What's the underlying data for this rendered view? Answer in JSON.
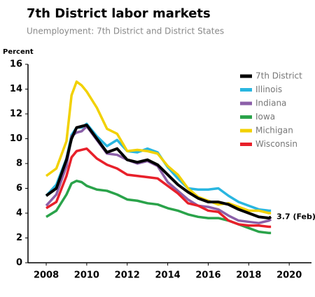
{
  "chart_data": {
    "type": "line",
    "title": "7th District labor markets",
    "subtitle": "Unemployment: 7th District and District States",
    "y_label": "Percent",
    "annotation": "3.7 (Feb)",
    "x": [
      2008,
      2008.5,
      2009,
      2009.25,
      2009.5,
      2009.75,
      2010,
      2010.5,
      2011,
      2011.5,
      2012,
      2012.5,
      2013,
      2013.5,
      2014,
      2014.5,
      2015,
      2015.5,
      2016,
      2016.5,
      2017,
      2017.5,
      2018,
      2018.5,
      2019,
      2019.1
    ],
    "series": [
      {
        "name": "Illinois",
        "color": "#29b6e0",
        "values": [
          5.4,
          6.3,
          8.4,
          10.3,
          10.9,
          10.9,
          11.2,
          10.2,
          9.4,
          9.9,
          9.0,
          8.9,
          9.2,
          8.9,
          7.7,
          6.8,
          6.0,
          5.9,
          5.9,
          6.0,
          5.4,
          4.9,
          4.6,
          4.3,
          4.2,
          4.2
        ]
      },
      {
        "name": "Indiana",
        "color": "#8b5fa8",
        "values": [
          4.6,
          5.5,
          7.8,
          10.2,
          10.5,
          10.6,
          11.0,
          9.9,
          8.8,
          8.7,
          8.3,
          8.0,
          8.2,
          7.8,
          6.5,
          5.8,
          5.1,
          4.6,
          4.5,
          4.3,
          3.8,
          3.4,
          3.3,
          3.2,
          3.4,
          3.5
        ]
      },
      {
        "name": "Iowa",
        "color": "#2aa34a",
        "values": [
          3.7,
          4.2,
          5.5,
          6.4,
          6.6,
          6.5,
          6.2,
          5.9,
          5.8,
          5.5,
          5.1,
          5.0,
          4.8,
          4.7,
          4.4,
          4.2,
          3.9,
          3.7,
          3.6,
          3.6,
          3.4,
          3.1,
          2.8,
          2.5,
          2.4,
          2.4
        ]
      },
      {
        "name": "Michigan",
        "color": "#f2d100",
        "values": [
          7.0,
          7.6,
          9.8,
          13.5,
          14.6,
          14.3,
          13.8,
          12.5,
          10.8,
          10.4,
          9.0,
          9.1,
          9.0,
          8.8,
          7.8,
          7.1,
          6.0,
          5.3,
          5.0,
          4.7,
          4.8,
          4.5,
          4.2,
          4.2,
          4.0,
          4.0
        ]
      },
      {
        "name": "Wisconsin",
        "color": "#e8202a",
        "values": [
          4.4,
          4.9,
          7.0,
          8.5,
          9.0,
          9.1,
          9.2,
          8.4,
          7.9,
          7.6,
          7.1,
          7.0,
          6.9,
          6.8,
          6.2,
          5.6,
          4.8,
          4.6,
          4.2,
          4.1,
          3.4,
          3.1,
          3.0,
          3.0,
          2.9,
          2.9
        ]
      },
      {
        "name": "7th District",
        "color": "#000000",
        "values": [
          5.4,
          6.0,
          8.3,
          10.0,
          10.9,
          11.0,
          11.1,
          10.0,
          8.9,
          9.2,
          8.3,
          8.1,
          8.3,
          7.9,
          7.1,
          6.3,
          5.7,
          5.2,
          4.9,
          4.9,
          4.7,
          4.3,
          4.0,
          3.7,
          3.6,
          3.7
        ]
      }
    ],
    "legend_order": [
      5,
      0,
      1,
      2,
      3,
      4
    ],
    "xlim": [
      2007.1,
      2021.1
    ],
    "ylim": [
      0,
      16
    ],
    "xticks": [
      2008,
      2010,
      2012,
      2014,
      2016,
      2018,
      2020
    ],
    "yticks": [
      0,
      2,
      4,
      6,
      8,
      10,
      12,
      14,
      16
    ],
    "grid": false
  }
}
